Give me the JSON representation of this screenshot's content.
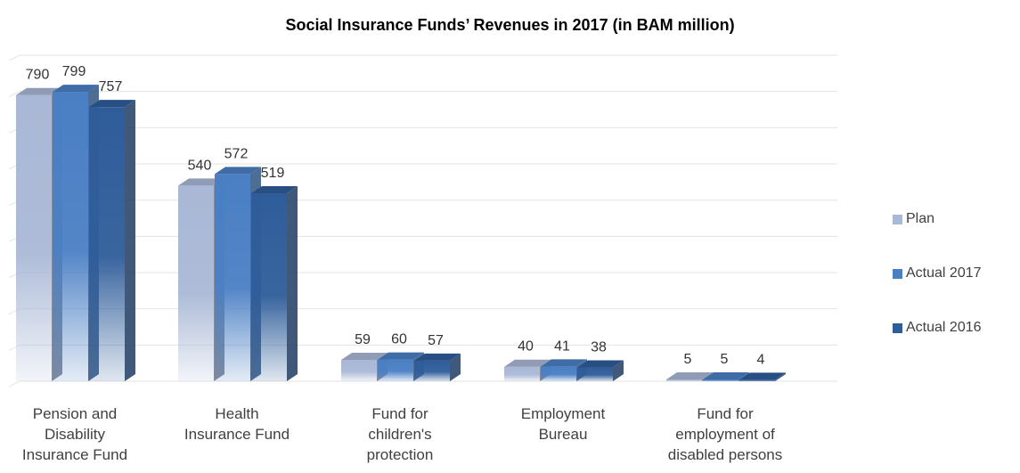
{
  "chart_data": {
    "type": "bar",
    "title": "Social Insurance Funds’ Revenues in 2017 (in BAM million)",
    "categories": [
      [
        "Pension and",
        "Disability",
        "Insurance Fund"
      ],
      [
        "Health",
        "Insurance Fund"
      ],
      [
        "Fund for",
        "children's",
        "protection"
      ],
      [
        "Employment",
        "Bureau"
      ],
      [
        "Fund for",
        "employment of",
        "disabled persons"
      ]
    ],
    "series": [
      {
        "name": "Plan",
        "values": [
          790,
          540,
          59,
          40,
          5
        ],
        "color": "#a9b8d6"
      },
      {
        "name": "Actual 2017",
        "values": [
          799,
          572,
          60,
          41,
          5
        ],
        "color": "#4a7fc4"
      },
      {
        "name": "Actual 2016",
        "values": [
          757,
          519,
          57,
          38,
          4
        ],
        "color": "#2f5d9a"
      }
    ],
    "ylim": [
      0,
      900
    ],
    "grid": true,
    "legend_position": "right"
  }
}
